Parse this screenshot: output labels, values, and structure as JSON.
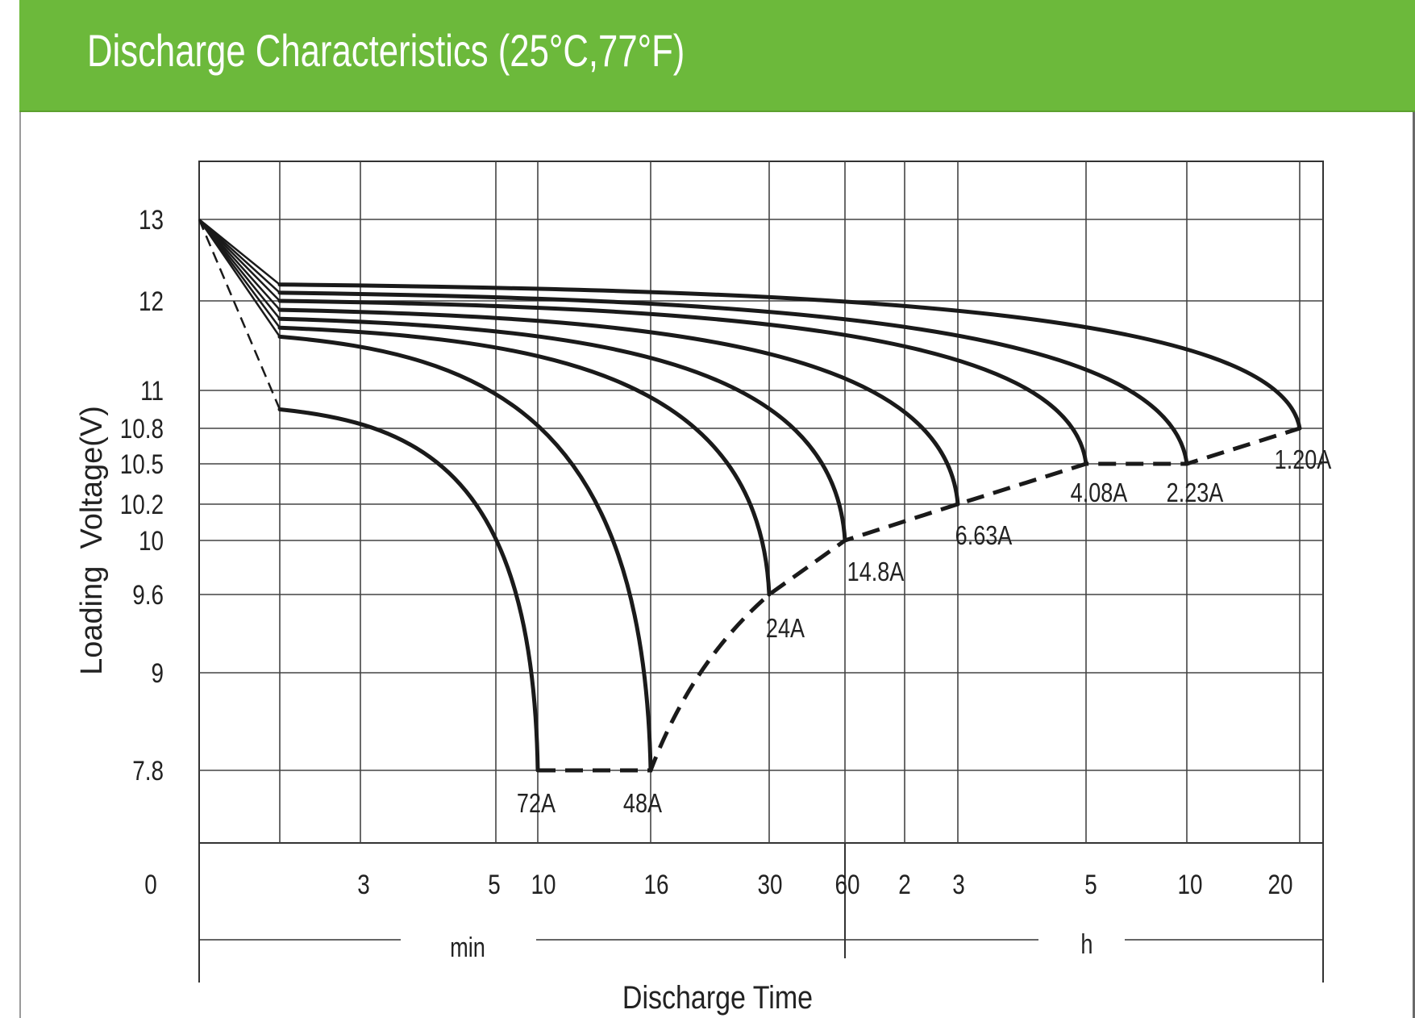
{
  "header": {
    "title": "Discharge Characteristics (25°C,77°F)",
    "background": "#6cb93b"
  },
  "chart_data": {
    "type": "line",
    "title": "Discharge Characteristics (25°C,77°F)",
    "xlabel": "Discharge Time",
    "ylabel": "Loading  Voltage(V)",
    "x_units": [
      "min",
      "h"
    ],
    "x_ticks": [
      {
        "label": "0",
        "minutes": 0
      },
      {
        "label": "3",
        "minutes": 3
      },
      {
        "label": "5",
        "minutes": 5
      },
      {
        "label": "10",
        "minutes": 10
      },
      {
        "label": "16",
        "minutes": 16
      },
      {
        "label": "30",
        "minutes": 30
      },
      {
        "label": "60",
        "minutes": 60
      },
      {
        "label": "2",
        "minutes": 120
      },
      {
        "label": "3",
        "minutes": 180
      },
      {
        "label": "5",
        "minutes": 300
      },
      {
        "label": "10",
        "minutes": 600
      },
      {
        "label": "20",
        "minutes": 1200
      }
    ],
    "y_ticks": [
      {
        "label": "13",
        "value": 13
      },
      {
        "label": "12",
        "value": 12
      },
      {
        "label": "11",
        "value": 11
      },
      {
        "label": "10.8",
        "value": 10.8
      },
      {
        "label": "10.5",
        "value": 10.5
      },
      {
        "label": "10.2",
        "value": 10.2
      },
      {
        "label": "10",
        "value": 10
      },
      {
        "label": "9.6",
        "value": 9.6
      },
      {
        "label": "9",
        "value": 9
      },
      {
        "label": "7.8",
        "value": 7.8
      }
    ],
    "grid": true,
    "line_color": "#1a1a1a",
    "series": [
      {
        "name": "72A",
        "plateau": 10.9,
        "end_minutes": 10,
        "end_voltage": 7.8
      },
      {
        "name": "48A",
        "plateau": 11.6,
        "end_minutes": 16,
        "end_voltage": 7.8
      },
      {
        "name": "24A",
        "plateau": 11.7,
        "end_minutes": 30,
        "end_voltage": 9.6
      },
      {
        "name": "14.8A",
        "plateau": 11.8,
        "end_minutes": 60,
        "end_voltage": 10.0
      },
      {
        "name": "6.63A",
        "plateau": 11.9,
        "end_minutes": 180,
        "end_voltage": 10.2
      },
      {
        "name": "4.08A",
        "plateau": 12.0,
        "end_minutes": 300,
        "end_voltage": 10.5
      },
      {
        "name": "2.23A",
        "plateau": 12.1,
        "end_minutes": 600,
        "end_voltage": 10.5
      },
      {
        "name": "1.20A",
        "plateau": 12.2,
        "end_minutes": 1200,
        "end_voltage": 10.8
      }
    ],
    "end_voltage_line": [
      {
        "minutes": 10,
        "voltage": 7.8
      },
      {
        "minutes": 16,
        "voltage": 7.8
      },
      {
        "minutes": 30,
        "voltage": 9.6
      },
      {
        "minutes": 60,
        "voltage": 10.0
      },
      {
        "minutes": 180,
        "voltage": 10.2
      },
      {
        "minutes": 300,
        "voltage": 10.5
      },
      {
        "minutes": 600,
        "voltage": 10.5
      },
      {
        "minutes": 1200,
        "voltage": 10.8
      }
    ]
  }
}
